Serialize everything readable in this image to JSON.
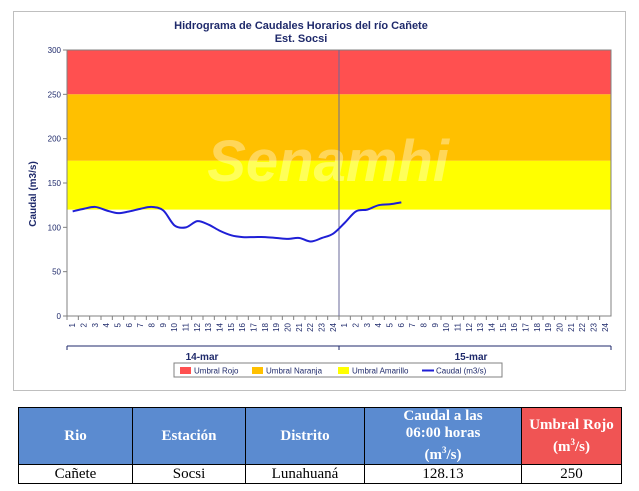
{
  "colors": {
    "red": "#ff5050",
    "orange": "#ffc000",
    "yellow": "#ffff00",
    "line": "#1f1fd6",
    "table_header": "#5b8bd0",
    "table_header_red": "#f05454"
  },
  "chart_data": {
    "type": "line",
    "title": "Hidrograma de Caudales Horarios del río Cañete",
    "subtitle": "Est. Socsi",
    "ylabel": "Caudal  (m3/s)",
    "ylim": [
      0,
      300
    ],
    "yticks": [
      "0",
      "50",
      "100",
      "150",
      "200",
      "250",
      "300"
    ],
    "xticks": [
      "1",
      "2",
      "3",
      "4",
      "5",
      "6",
      "7",
      "8",
      "9",
      "10",
      "11",
      "12",
      "13",
      "14",
      "15",
      "16",
      "17",
      "18",
      "19",
      "20",
      "21",
      "22",
      "23",
      "24",
      "1",
      "2",
      "3",
      "4",
      "5",
      "6",
      "7",
      "8",
      "9",
      "10",
      "11",
      "12",
      "13",
      "14",
      "15",
      "16",
      "17",
      "18",
      "19",
      "20",
      "21",
      "22",
      "23",
      "24"
    ],
    "day_labels": [
      "14-mar",
      "15-mar"
    ],
    "watermark": "Senamhi",
    "thresholds": [
      {
        "name": "Umbral Rojo",
        "from": 250,
        "to": 300
      },
      {
        "name": "Umbral Naranja",
        "from": 175,
        "to": 250
      },
      {
        "name": "Umbral Amarillo",
        "from": 120,
        "to": 175
      }
    ],
    "series": [
      {
        "name": "Caudal (m3/s)",
        "values": [
          118,
          121,
          123,
          119,
          116,
          118,
          121,
          123,
          119,
          102,
          100,
          107,
          103,
          96,
          91,
          89,
          89,
          89,
          88,
          87,
          88,
          84,
          88,
          93,
          105,
          118,
          120,
          125,
          126,
          128.13
        ]
      }
    ],
    "legend": [
      "Umbral Rojo",
      "Umbral Naranja",
      "Umbral Amarillo",
      "Caudal (m3/s)"
    ],
    "legend_position": "bottom"
  },
  "table": {
    "headers": {
      "rio": "Rio",
      "estacion": "Estación",
      "distrito": "Distrito",
      "caudal_line1": "Caudal a las",
      "caudal_line2": "06:00 horas",
      "caudal_unit_pre": "(m",
      "caudal_unit_sup": "3",
      "caudal_unit_post": "/s)",
      "umbral_line1": "Umbral Rojo",
      "umbral_unit_pre": "(m",
      "umbral_unit_sup": "3",
      "umbral_unit_post": "/s)"
    },
    "row": {
      "rio": "Cañete",
      "estacion": "Socsi",
      "distrito": "Lunahuaná",
      "caudal": "128.13",
      "umbral": "250"
    }
  }
}
